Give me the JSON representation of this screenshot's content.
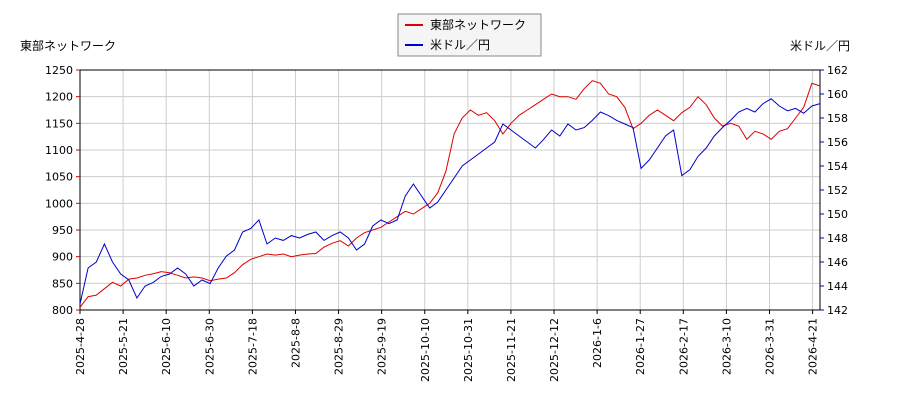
{
  "chart_data": {
    "type": "line",
    "left_axis_label": "東部ネットワーク",
    "right_axis_label": "米ドル／円",
    "legend": [
      {
        "name": "東部ネットワーク",
        "color": "#dd0000"
      },
      {
        "name": "米ドル／円",
        "color": "#0000cc"
      }
    ],
    "left_ylim": [
      800,
      1250
    ],
    "left_ticks": [
      800,
      850,
      900,
      950,
      1000,
      1050,
      1100,
      1150,
      1200,
      1250
    ],
    "right_ylim": [
      142,
      162
    ],
    "right_ticks": [
      142,
      144,
      146,
      148,
      150,
      152,
      154,
      156,
      158,
      160,
      162
    ],
    "x_ticks": [
      "2025-4-28",
      "2025-5-21",
      "2025-6-10",
      "2025-6-30",
      "2025-7-18",
      "2025-8-8",
      "2025-8-29",
      "2025-9-19",
      "2025-10-10",
      "2025-10-31",
      "2025-11-21",
      "2025-12-12",
      "2026-1-6",
      "2026-1-27",
      "2026-2-17",
      "2026-3-10",
      "2026-3-31",
      "2026-4-21"
    ],
    "grid": true,
    "legend_position": "top-center",
    "series": [
      {
        "name": "東部ネットワーク",
        "axis": "left",
        "color": "#dd0000",
        "values": [
          805,
          825,
          828,
          840,
          852,
          845,
          858,
          860,
          865,
          868,
          872,
          870,
          865,
          860,
          862,
          860,
          855,
          858,
          860,
          870,
          885,
          895,
          900,
          905,
          903,
          905,
          900,
          903,
          905,
          906,
          918,
          925,
          930,
          920,
          935,
          945,
          950,
          955,
          965,
          975,
          985,
          980,
          990,
          1000,
          1020,
          1060,
          1130,
          1160,
          1175,
          1165,
          1170,
          1155,
          1130,
          1150,
          1165,
          1175,
          1185,
          1195,
          1205,
          1200,
          1200,
          1195,
          1215,
          1230,
          1225,
          1205,
          1200,
          1180,
          1140,
          1150,
          1165,
          1175,
          1165,
          1155,
          1170,
          1180,
          1200,
          1185,
          1160,
          1145,
          1150,
          1145,
          1120,
          1135,
          1130,
          1120,
          1135,
          1140,
          1160,
          1180,
          1225,
          1220
        ]
      },
      {
        "name": "米ドル／円",
        "axis": "right",
        "color": "#0000cc",
        "values": [
          142.5,
          145.5,
          146,
          147.5,
          146,
          145,
          144.5,
          143,
          144,
          144.3,
          144.8,
          145,
          145.5,
          145,
          144,
          144.5,
          144.2,
          145.5,
          146.5,
          147,
          148.5,
          148.8,
          149.5,
          147.5,
          148,
          147.8,
          148.2,
          148,
          148.3,
          148.5,
          147.8,
          148.2,
          148.5,
          148,
          147,
          147.5,
          149,
          149.5,
          149.2,
          149.5,
          151.5,
          152.5,
          151.5,
          150.5,
          151,
          152,
          153,
          154,
          154.5,
          155,
          155.5,
          156,
          157.5,
          157,
          156.5,
          156,
          155.5,
          156.2,
          157,
          156.5,
          157.5,
          157,
          157.2,
          157.8,
          158.5,
          158.2,
          157.8,
          157.5,
          157.2,
          153.8,
          154.5,
          155.5,
          156.5,
          157,
          153.2,
          153.7,
          154.8,
          155.5,
          156.5,
          157.2,
          157.8,
          158.5,
          158.8,
          158.5,
          159.2,
          159.6,
          159,
          158.6,
          158.8,
          158.4,
          159,
          159.2
        ]
      }
    ]
  }
}
